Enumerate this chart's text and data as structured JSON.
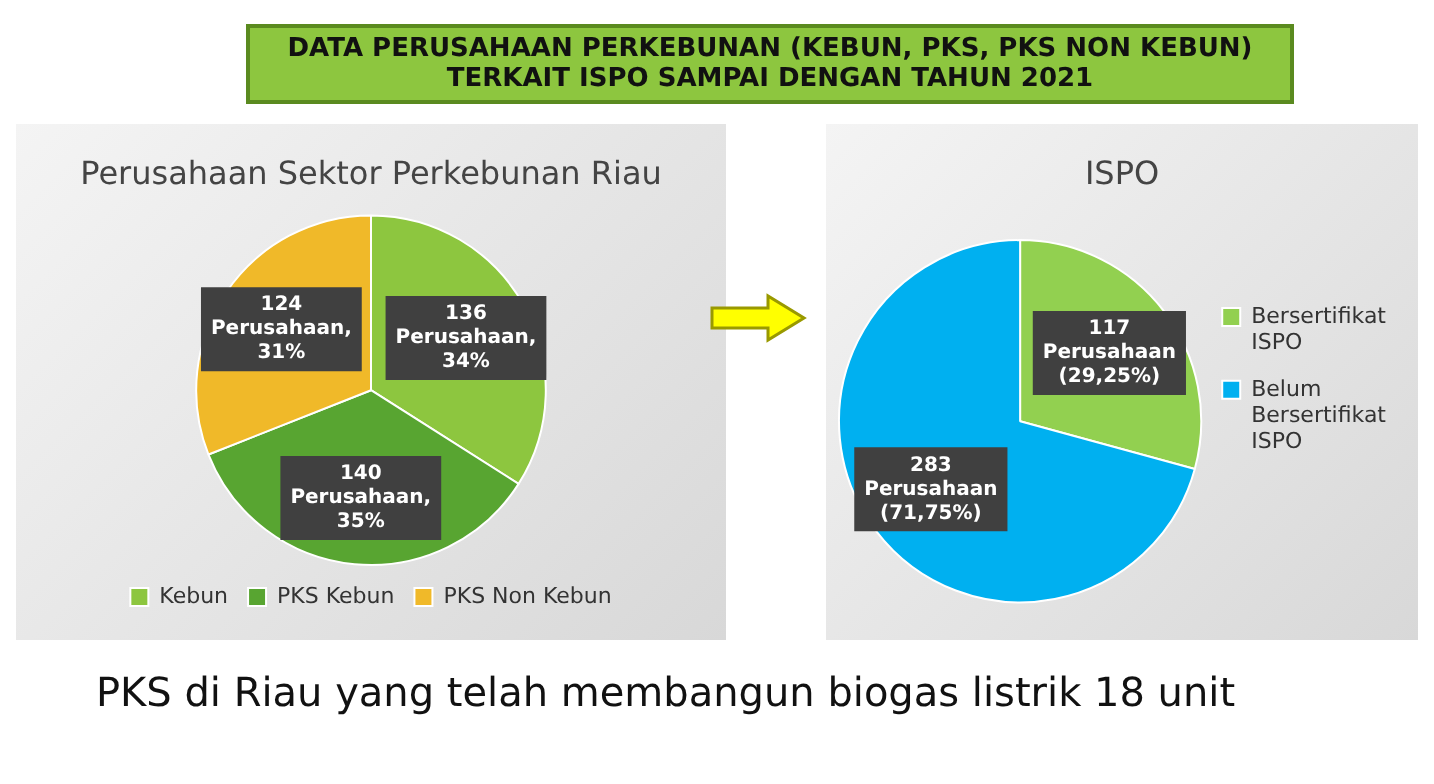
{
  "chart_data": [
    {
      "type": "pie",
      "title": "Perusahaan Sektor Perkebunan Riau",
      "categories": [
        "Kebun",
        "PKS Kebun",
        "PKS Non Kebun"
      ],
      "values": [
        136,
        140,
        124
      ],
      "colors": [
        "#8dc63f",
        "#58a531",
        "#f0b929"
      ],
      "value_labels": [
        "136\nPerusahaan,\n34%",
        "140\nPerusahaan,\n35%",
        "124\nPerusahaan,\n31%"
      ],
      "legend": "bottom",
      "annotations": [
        "DATA PERUSAHAAN PERKEBUNAN (KEBUN, PKS, PKS NON KEBUN)\nTERKAIT ISPO SAMPAI DENGAN TAHUN 2021",
        "PKS di Riau yang telah membangun biogas listrik 18 unit"
      ]
    },
    {
      "type": "pie",
      "title": "ISPO",
      "categories": [
        "Bersertifikat ISPO",
        "Belum Bersertifikat ISPO"
      ],
      "values": [
        117,
        283
      ],
      "colors": [
        "#92d050",
        "#00b0f0"
      ],
      "value_labels": [
        "117\nPerusahaan\n(29,25%)",
        "283\nPerusahaan\n(71,75%)"
      ],
      "legend": "right"
    }
  ]
}
